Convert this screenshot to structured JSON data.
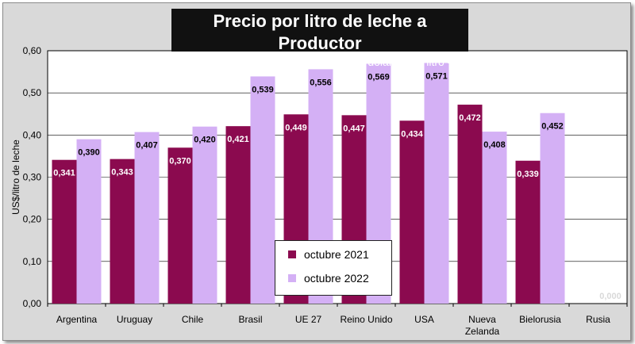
{
  "title": "Precio por litro de leche a Productor",
  "subtitle": "- Países/Bloques seleccionados, en dólares por litro -",
  "colors": {
    "series1": "#8b0a4f",
    "series2": "#d4b0f5"
  },
  "chart_data": {
    "type": "bar",
    "title": "Precio por litro de leche a Productor",
    "subtitle": "- Países/Bloques seleccionados, en dólares por litro -",
    "xlabel": "",
    "ylabel": "US$/litro de leche",
    "ylim": [
      0,
      0.6
    ],
    "yticks": [
      "0,00",
      "0,10",
      "0,20",
      "0,30",
      "0,40",
      "0,50",
      "0,60"
    ],
    "grid": true,
    "legend_position": "bottom-center",
    "categories": [
      "Argentina",
      "Uruguay",
      "Chile",
      "Brasil",
      "UE 27",
      "Reino Unido",
      "USA",
      "Nueva Zelanda",
      "Bielorusia",
      "Rusia"
    ],
    "category_labels": [
      [
        "Argentina"
      ],
      [
        "Uruguay"
      ],
      [
        "Chile"
      ],
      [
        "Brasil"
      ],
      [
        "UE 27"
      ],
      [
        "Reino Unido"
      ],
      [
        "USA"
      ],
      [
        "Nueva",
        "Zelanda"
      ],
      [
        "Bielorusia"
      ],
      [
        "Rusia"
      ]
    ],
    "series": [
      {
        "name": "octubre 2021",
        "values": [
          0.341,
          0.343,
          0.37,
          0.421,
          0.449,
          0.447,
          0.434,
          0.472,
          0.339,
          null
        ],
        "labels": [
          "0,341",
          "0,343",
          "0,370",
          "0,421",
          "0,449",
          "0,447",
          "0,434",
          "0,472",
          "0,339",
          ""
        ]
      },
      {
        "name": "octubre 2022",
        "values": [
          0.39,
          0.407,
          0.42,
          0.539,
          0.556,
          0.569,
          0.571,
          0.408,
          0.452,
          0.0
        ],
        "labels": [
          "0,390",
          "0,407",
          "0,420",
          "0,539",
          "0,556",
          "0,569",
          "0,571",
          "0,408",
          "0,452",
          "0,000"
        ]
      }
    ]
  }
}
